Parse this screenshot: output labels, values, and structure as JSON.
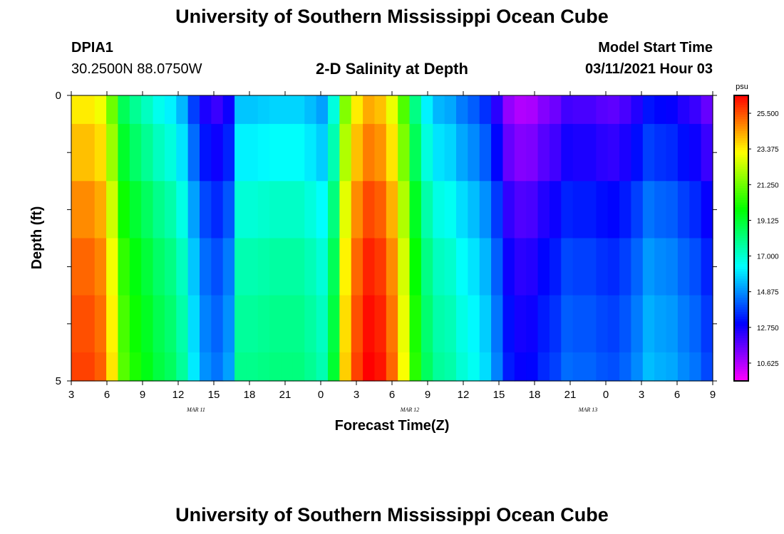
{
  "header": {
    "top_title": "University of Southern Mississippi Ocean Cube",
    "bottom_title": "University of Southern Mississippi Ocean Cube",
    "station": "DPIA1",
    "location": "30.2500N 88.0750W",
    "plot_title": "2-D Salinity at Depth",
    "model_start_label": "Model Start Time",
    "model_start_value": "03/11/2021 Hour 03"
  },
  "chart_data": {
    "type": "heatmap",
    "title": "2-D Salinity at Depth",
    "xlabel": "Forecast Time(Z)",
    "ylabel": "Depth (ft)",
    "x_tick_labels": [
      "3",
      "6",
      "9",
      "12",
      "15",
      "18",
      "21",
      "0",
      "3",
      "6",
      "9",
      "12",
      "15",
      "18",
      "21",
      "0",
      "3",
      "6",
      "9"
    ],
    "x_date_labels": [
      {
        "label": "MAR 11",
        "after_tick": "9"
      },
      {
        "label": "MAR 12",
        "after_tick": "3"
      },
      {
        "label": "MAR 13",
        "after_tick": "3"
      }
    ],
    "y_tick_labels": [
      "0",
      "5"
    ],
    "ylim": [
      0,
      5
    ],
    "x_hours": [
      3,
      4,
      5,
      6,
      7,
      8,
      9,
      10,
      11,
      12,
      13,
      14,
      15,
      16,
      17,
      18,
      19,
      20,
      21,
      22,
      23,
      24,
      25,
      26,
      27,
      28,
      29,
      30,
      31,
      32,
      33,
      34,
      35,
      36,
      37,
      38,
      39,
      40,
      41,
      42,
      43,
      44,
      45,
      46,
      47,
      48,
      49,
      50,
      51,
      52,
      53,
      54,
      55,
      56,
      57
    ],
    "depth_bands": [
      "0.0-0.5",
      "0.5-1.5",
      "1.5-2.5",
      "2.5-3.5",
      "3.5-4.5",
      "4.5-5.0"
    ],
    "time_profile": [
      23.4,
      23.4,
      23.0,
      21.2,
      18.6,
      17.8,
      17.2,
      16.6,
      16.2,
      15.4,
      13.8,
      12.6,
      12.2,
      12.8,
      15.6,
      15.6,
      15.7,
      15.8,
      15.8,
      15.8,
      15.5,
      15.1,
      16.8,
      21.5,
      23.4,
      24.3,
      24.0,
      22.9,
      20.8,
      18.0,
      16.2,
      15.4,
      15.2,
      14.6,
      14.2,
      13.6,
      12.4,
      11.0,
      10.6,
      10.7,
      11.2,
      11.5,
      12.1,
      12.0,
      12.0,
      11.8,
      11.7,
      12.0,
      12.5,
      13.2,
      13.0,
      12.9,
      12.5,
      12.2,
      11.6
    ],
    "depth_profile": [
      0.0,
      0.6,
      1.3,
      1.8,
      2.1,
      2.3
    ],
    "colorbar": {
      "unit": "psu",
      "min": 9.56,
      "max": 26.56,
      "tick_labels": [
        "25.500",
        "23.375",
        "21.250",
        "19.125",
        "17.000",
        "14.875",
        "12.750",
        "10.625"
      ]
    }
  }
}
